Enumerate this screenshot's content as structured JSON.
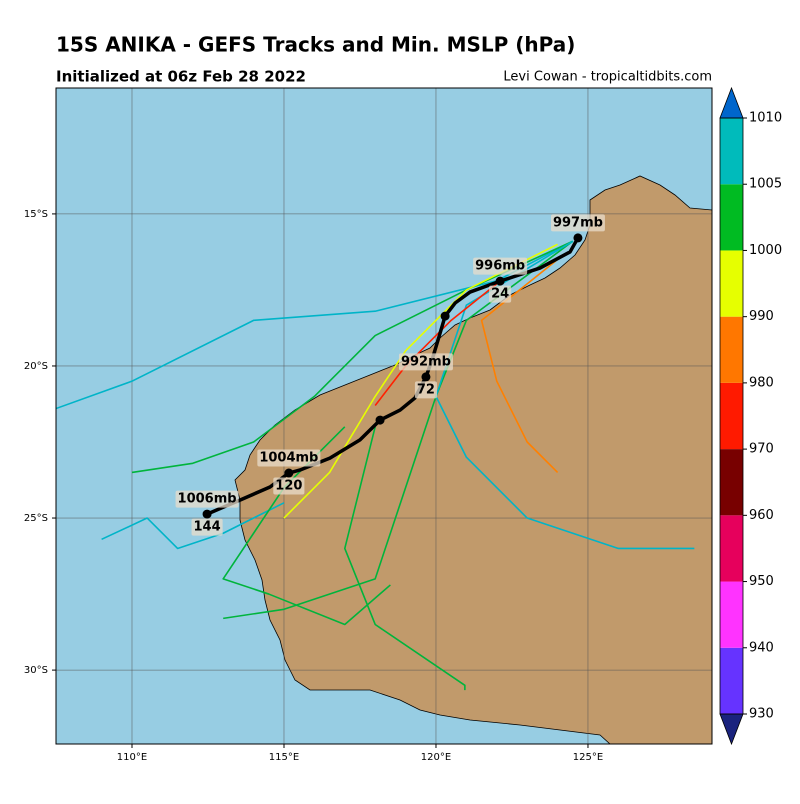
{
  "chart_data": {
    "type": "track-map",
    "title": "15S ANIKA - GEFS Tracks and Min. MSLP (hPa)",
    "subtitle": "Initialized at 06z Feb 28 2022",
    "credit": "Levi Cowan - tropicaltidbits.com",
    "xlim": [
      107.5,
      129.08
    ],
    "ylim": [
      -32.43,
      -10.86
    ],
    "xticks": [
      {
        "value": 110,
        "label": "110°E"
      },
      {
        "value": 115,
        "label": "115°E"
      },
      {
        "value": 120,
        "label": "120°E"
      },
      {
        "value": 125,
        "label": "125°E"
      }
    ],
    "yticks": [
      {
        "value": -15,
        "label": "15°S"
      },
      {
        "value": -20,
        "label": "20°S"
      },
      {
        "value": -25,
        "label": "25°S"
      },
      {
        "value": -30,
        "label": "30°S"
      }
    ],
    "grid": true,
    "members": [
      {
        "color": "#00b4c8",
        "lon": [
          124.5,
          122,
          118,
          114,
          110,
          107.5
        ],
        "lat": [
          -15.9,
          -17.2,
          -18.2,
          -18.5,
          -20.5,
          -21.4
        ]
      },
      {
        "color": "#00b43c",
        "lon": [
          124.5,
          121,
          118,
          116,
          114,
          112,
          110
        ],
        "lat": [
          -15.9,
          -17.5,
          -19,
          -21,
          -22.5,
          -23.2,
          -23.5
        ]
      },
      {
        "color": "#00b43c",
        "lon": [
          124.5,
          121,
          120,
          119,
          118,
          115,
          113
        ],
        "lat": [
          -15.9,
          -18.5,
          -21,
          -24,
          -27,
          -28,
          -28.3
        ]
      },
      {
        "color": "#00b4c8",
        "lon": [
          124.5,
          121,
          120,
          121,
          123,
          126,
          128.5
        ],
        "lat": [
          -15.9,
          -18,
          -21,
          -23,
          -25,
          -26,
          -26
        ]
      },
      {
        "color": "#ff8000",
        "lon": [
          124,
          121.5,
          122,
          123,
          124
        ],
        "lat": [
          -16.5,
          -18.5,
          -20.5,
          -22.5,
          -23.5
        ]
      },
      {
        "color": "#ff2000",
        "lon": [
          122,
          120.5,
          119,
          118
        ],
        "lat": [
          -17.3,
          -18.5,
          -20,
          -21.3
        ]
      },
      {
        "color": "#e6ff00",
        "lon": [
          124,
          121,
          119,
          118,
          116.5,
          115
        ],
        "lat": [
          -16,
          -17.5,
          -19.5,
          -21,
          -23.5,
          -25
        ]
      },
      {
        "color": "#00b43c",
        "lon": [
          118,
          117,
          118,
          120.95,
          120.95
        ],
        "lat": [
          -22,
          -26,
          -28.5,
          -30.5,
          -30.66
        ]
      },
      {
        "color": "#00b4c8",
        "lon": [
          115,
          113,
          111.5,
          110.5,
          109
        ],
        "lat": [
          -24.5,
          -25.5,
          -26,
          -25,
          -25.7
        ]
      },
      {
        "color": "#00b43c",
        "lon": [
          117,
          115,
          113,
          114.5,
          117,
          118.5
        ],
        "lat": [
          -22,
          -24,
          -27,
          -27.5,
          -28.5,
          -27.2
        ]
      }
    ],
    "mean_track": {
      "color": "#000000",
      "lon": [
        124.67,
        124.41,
        123.42,
        122.11,
        121.12,
        120.63,
        120.3,
        120.07,
        119.87,
        119.67,
        119.31,
        118.82,
        118.16,
        117.5,
        116.51,
        115.53,
        115.16,
        114.54,
        113.55,
        112.47
      ],
      "lat": [
        -15.79,
        -16.25,
        -16.78,
        -17.21,
        -17.57,
        -17.93,
        -18.36,
        -19.14,
        -19.8,
        -20.36,
        -21.05,
        -21.45,
        -21.78,
        -22.43,
        -23.03,
        -23.42,
        -23.52,
        -23.98,
        -24.41,
        -24.87
      ]
    },
    "markers": [
      {
        "lon": 124.67,
        "lat": -15.79,
        "mslp": "997mb"
      },
      {
        "lon": 122.11,
        "lat": -17.21,
        "mslp": "996mb",
        "hour": "24"
      },
      {
        "lon": 120.3,
        "lat": -18.36
      },
      {
        "lon": 119.67,
        "lat": -20.36,
        "mslp": "992mb",
        "hour": "72"
      },
      {
        "lon": 118.16,
        "lat": -21.78
      },
      {
        "lon": 115.16,
        "lat": -23.52,
        "mslp": "1004mb",
        "hour": "120"
      },
      {
        "lon": 112.47,
        "lat": -24.87,
        "mslp": "1006mb",
        "hour": "144"
      }
    ],
    "colorbar": {
      "ticks": [
        930,
        940,
        950,
        960,
        970,
        980,
        990,
        1000,
        1005,
        1010
      ],
      "colors": [
        "#6633ff",
        "#ff33ff",
        "#e6005c",
        "#780000",
        "#ff1a00",
        "#ff7700",
        "#e6ff00",
        "#00bb22",
        "#00bbbb"
      ],
      "under_color": "#1a237e",
      "over_color": "#0066cc"
    }
  }
}
